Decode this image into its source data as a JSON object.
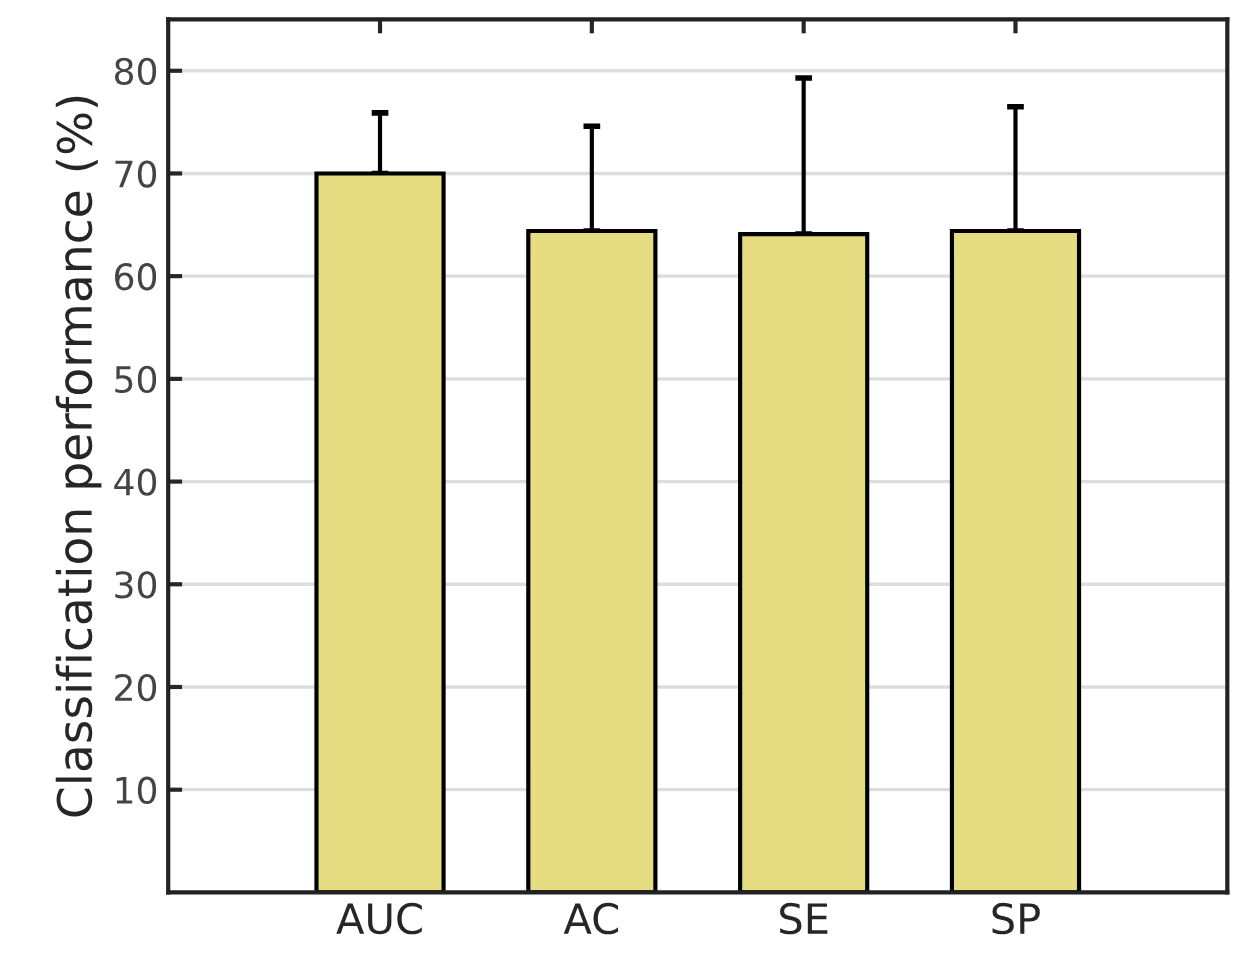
{
  "chart_data": {
    "type": "bar",
    "ylabel": "Classification performance (%)",
    "categories": [
      "AUC",
      "AC",
      "SE",
      "SP"
    ],
    "values": [
      70,
      64.4,
      64.1,
      64.4
    ],
    "errors": [
      [
        70,
        75.9
      ],
      [
        64.4,
        74.6
      ],
      [
        64.1,
        79.3
      ],
      [
        64.4,
        76.5
      ]
    ],
    "color": "#e6dc82",
    "ylim": [
      0,
      85
    ],
    "yticks": [
      10,
      20,
      30,
      40,
      50,
      60,
      70,
      80
    ],
    "grid": "y"
  }
}
